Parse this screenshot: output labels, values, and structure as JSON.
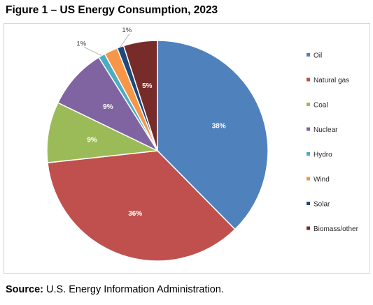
{
  "figure": {
    "title": "Figure 1 – US Energy Consumption, 2023",
    "source_label": "Source:",
    "source_text": "U.S. Energy Information Administration."
  },
  "chart_data": {
    "type": "pie",
    "title": "Figure 1 – US Energy Consumption, 2023",
    "unit": "%",
    "start_angle_deg": 0,
    "direction": "clockwise",
    "legend_position": "right",
    "slices": [
      {
        "label": "Oil",
        "value": 38,
        "display": "38%",
        "color": "#4f81bd"
      },
      {
        "label": "Natural gas",
        "value": 36,
        "display": "36%",
        "color": "#c0504d"
      },
      {
        "label": "Coal",
        "value": 9,
        "display": "9%",
        "color": "#9bbb59"
      },
      {
        "label": "Nuclear",
        "value": 9,
        "display": "9%",
        "color": "#8064a2"
      },
      {
        "label": "Hydro",
        "value": 1,
        "display": "1%",
        "color": "#4bacc6"
      },
      {
        "label": "Wind",
        "value": 2,
        "display": "",
        "color": "#f79646"
      },
      {
        "label": "Solar",
        "value": 1,
        "display": "1%",
        "color": "#1f497d"
      },
      {
        "label": "Biomass/other",
        "value": 5,
        "display": "5%",
        "color": "#772c2a"
      }
    ]
  }
}
